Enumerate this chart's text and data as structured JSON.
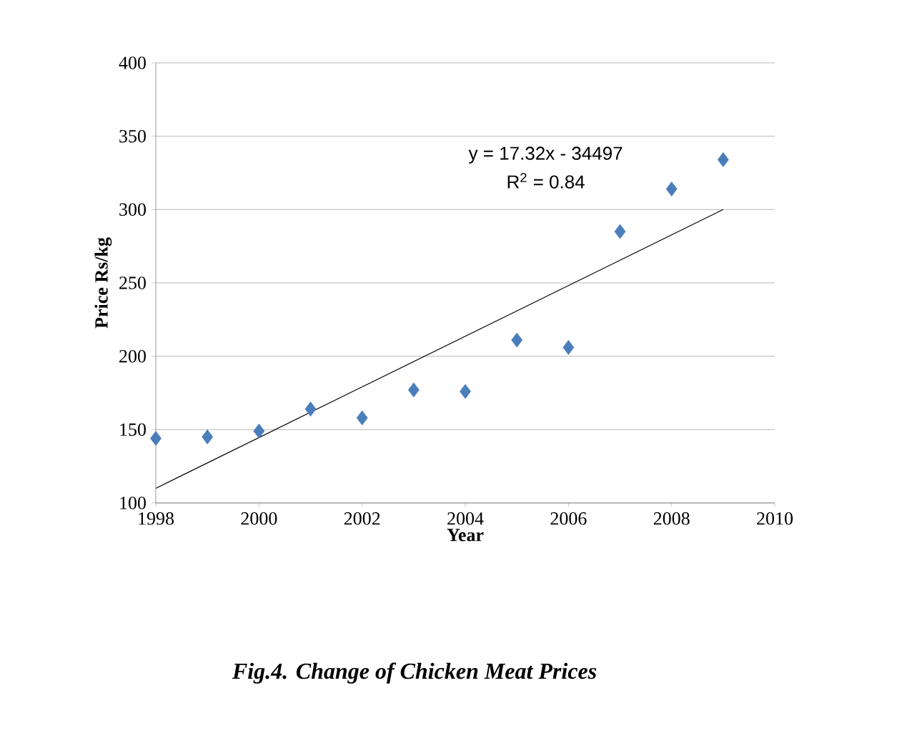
{
  "chart_data": {
    "type": "scatter",
    "title": "Fig.4. Change of Chicken Meat Prices",
    "xlabel": "Year",
    "ylabel": "Price Rs/kg",
    "annotations": [
      "y = 17.32x - 34497",
      "R$^{2}$ = 0.84"
    ],
    "series": [
      {
        "color": "#4a7ebb",
        "marker": "diamond",
        "x": [
          1998,
          1999,
          2000,
          2001,
          2002,
          2003,
          2004,
          2005,
          2006,
          2007,
          2008,
          2009
        ],
        "values": [
          144,
          145,
          149,
          164,
          158,
          177,
          176,
          211,
          206,
          285,
          314,
          334
        ]
      },
      {
        "type": "line",
        "color": "#000000",
        "marker": "none",
        "x": [
          1998,
          2009
        ],
        "values": [
          110,
          300
        ]
      }
    ],
    "xlim": [
      1998,
      2010
    ],
    "xticks": [
      1998,
      2000,
      2002,
      2004,
      2006,
      2008,
      2010
    ],
    "ylim": [
      100,
      400
    ],
    "yticks": [
      100,
      150,
      200,
      250,
      300,
      350,
      400
    ],
    "grid": "y"
  }
}
